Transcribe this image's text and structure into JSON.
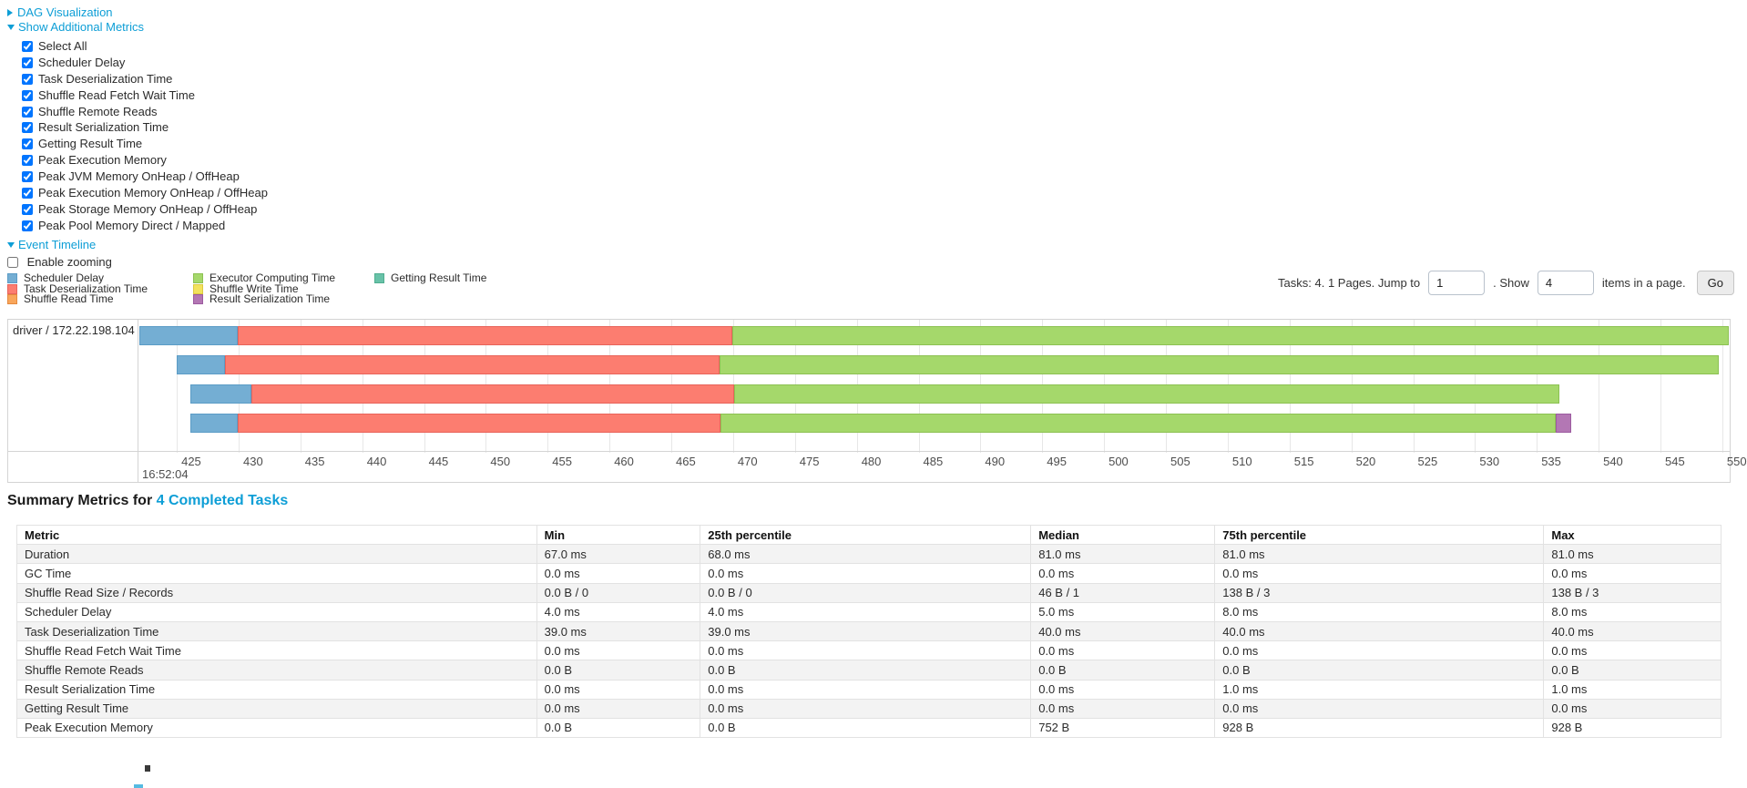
{
  "links": {
    "dag": "DAG Visualization",
    "metrics": "Show Additional Metrics",
    "timeline": "Event Timeline"
  },
  "checkboxes": {
    "metric_options": [
      "Select All",
      "Scheduler Delay",
      "Task Deserialization Time",
      "Shuffle Read Fetch Wait Time",
      "Shuffle Remote Reads",
      "Result Serialization Time",
      "Getting Result Time",
      "Peak Execution Memory",
      "Peak JVM Memory OnHeap / OffHeap",
      "Peak Execution Memory OnHeap / OffHeap",
      "Peak Storage Memory OnHeap / OffHeap",
      "Peak Pool Memory Direct / Mapped"
    ],
    "enable_zooming": "Enable zooming"
  },
  "colors": {
    "scheduler_delay": {
      "fill": "#74AED3",
      "border": "#5B9CC6"
    },
    "task_deserialization": {
      "fill": "#FC7D70",
      "border": "#E8635A"
    },
    "shuffle_read": {
      "fill": "#F9A65B",
      "border": "#E58A3E"
    },
    "executor_computing": {
      "fill": "#A5D86B",
      "border": "#8CC152"
    },
    "shuffle_write": {
      "fill": "#F2E25D",
      "border": "#DCC93F"
    },
    "result_serialization": {
      "fill": "#B377B4",
      "border": "#9C5BA0"
    },
    "getting_result": {
      "fill": "#68C2A8",
      "border": "#4FAE90"
    }
  },
  "legend": {
    "columns": [
      [
        {
          "key": "scheduler_delay",
          "label": "Scheduler Delay"
        },
        {
          "key": "task_deserialization",
          "label": "Task Deserialization Time"
        },
        {
          "key": "shuffle_read",
          "label": "Shuffle Read Time"
        }
      ],
      [
        {
          "key": "executor_computing",
          "label": "Executor Computing Time"
        },
        {
          "key": "shuffle_write",
          "label": "Shuffle Write Time"
        },
        {
          "key": "result_serialization",
          "label": "Result Serialization Time"
        }
      ],
      [
        {
          "key": "getting_result",
          "label": "Getting Result Time"
        }
      ]
    ]
  },
  "pagination": {
    "before_text": "Tasks: 4. 1 Pages. Jump to",
    "jump_value": "1",
    "mid_text": ". Show",
    "show_value": "4",
    "after_text": "items in a page.",
    "go_label": "Go"
  },
  "chart_data": {
    "type": "timeline",
    "group": "driver / 172.22.198.104",
    "axis": {
      "min": 421.9,
      "max": 550.6,
      "major_label": "16:52:04",
      "ticks": [
        425,
        430,
        435,
        440,
        445,
        450,
        455,
        460,
        465,
        470,
        475,
        480,
        485,
        490,
        495,
        500,
        505,
        510,
        515,
        520,
        525,
        530,
        535,
        540,
        545,
        550
      ]
    },
    "tasks": [
      {
        "segments": [
          {
            "t": "scheduler_delay",
            "start": 422.0,
            "end": 429.9
          },
          {
            "t": "task_deserialization",
            "start": 429.9,
            "end": 469.9
          },
          {
            "t": "executor_computing",
            "start": 469.9,
            "end": 550.5
          }
        ]
      },
      {
        "segments": [
          {
            "t": "scheduler_delay",
            "start": 425.0,
            "end": 428.9
          },
          {
            "t": "task_deserialization",
            "start": 428.9,
            "end": 468.9
          },
          {
            "t": "executor_computing",
            "start": 468.9,
            "end": 549.7
          }
        ]
      },
      {
        "segments": [
          {
            "t": "scheduler_delay",
            "start": 426.1,
            "end": 431.0
          },
          {
            "t": "task_deserialization",
            "start": 431.0,
            "end": 470.1
          },
          {
            "t": "executor_computing",
            "start": 470.1,
            "end": 536.8
          }
        ]
      },
      {
        "segments": [
          {
            "t": "scheduler_delay",
            "start": 426.1,
            "end": 429.9
          },
          {
            "t": "task_deserialization",
            "start": 429.9,
            "end": 469.0
          },
          {
            "t": "executor_computing",
            "start": 469.0,
            "end": 536.5
          },
          {
            "t": "result_serialization",
            "start": 536.5,
            "end": 537.8
          }
        ]
      }
    ]
  },
  "summary": {
    "title_prefix": "Summary Metrics for ",
    "title_link": "4 Completed Tasks",
    "columns": [
      "Metric",
      "Min",
      "25th percentile",
      "Median",
      "75th percentile",
      "Max"
    ],
    "col_widths": [
      "30.5%",
      "9.6%",
      "19.4%",
      "10.8%",
      "19.3%",
      "10.4%"
    ],
    "rows": [
      {
        "metric": "Duration",
        "values": [
          "67.0 ms",
          "68.0 ms",
          "81.0 ms",
          "81.0 ms",
          "81.0 ms"
        ]
      },
      {
        "metric": "GC Time",
        "values": [
          "0.0 ms",
          "0.0 ms",
          "0.0 ms",
          "0.0 ms",
          "0.0 ms"
        ]
      },
      {
        "metric": "Shuffle Read Size / Records",
        "values": [
          "0.0 B / 0",
          "0.0 B / 0",
          "46 B / 1",
          "138 B / 3",
          "138 B / 3"
        ]
      },
      {
        "metric": "Scheduler Delay",
        "values": [
          "4.0 ms",
          "4.0 ms",
          "5.0 ms",
          "8.0 ms",
          "8.0 ms"
        ]
      },
      {
        "metric": "Task Deserialization Time",
        "values": [
          "39.0 ms",
          "39.0 ms",
          "40.0 ms",
          "40.0 ms",
          "40.0 ms"
        ]
      },
      {
        "metric": "Shuffle Read Fetch Wait Time",
        "values": [
          "0.0 ms",
          "0.0 ms",
          "0.0 ms",
          "0.0 ms",
          "0.0 ms"
        ]
      },
      {
        "metric": "Shuffle Remote Reads",
        "values": [
          "0.0 B",
          "0.0 B",
          "0.0 B",
          "0.0 B",
          "0.0 B"
        ]
      },
      {
        "metric": "Result Serialization Time",
        "values": [
          "0.0 ms",
          "0.0 ms",
          "0.0 ms",
          "1.0 ms",
          "1.0 ms"
        ]
      },
      {
        "metric": "Getting Result Time",
        "values": [
          "0.0 ms",
          "0.0 ms",
          "0.0 ms",
          "0.0 ms",
          "0.0 ms"
        ]
      },
      {
        "metric": "Peak Execution Memory",
        "values": [
          "0.0 B",
          "0.0 B",
          "752 B",
          "928 B",
          "928 B"
        ]
      }
    ]
  }
}
